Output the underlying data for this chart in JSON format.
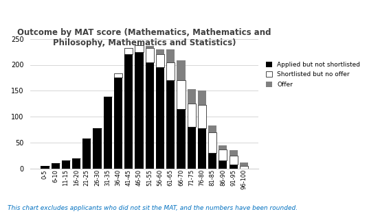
{
  "categories": [
    "0-5",
    "6-10",
    "11-15",
    "16-20",
    "21-25",
    "26-30",
    "31-35",
    "36-40",
    "41-45",
    "46-50",
    "51-55",
    "56-60",
    "61-65",
    "66-70",
    "71-75",
    "76-80",
    "81-85",
    "86-90",
    "91-95",
    "96-100"
  ],
  "applied_not_shortlisted": [
    5,
    10,
    15,
    20,
    58,
    78,
    138,
    175,
    220,
    225,
    205,
    195,
    170,
    115,
    80,
    78,
    30,
    15,
    8,
    0
  ],
  "shortlisted_no_offer": [
    0,
    0,
    0,
    0,
    0,
    0,
    0,
    8,
    13,
    13,
    27,
    25,
    35,
    55,
    45,
    45,
    40,
    22,
    17,
    5
  ],
  "offer": [
    0,
    0,
    0,
    0,
    0,
    0,
    0,
    0,
    0,
    0,
    5,
    10,
    25,
    38,
    28,
    28,
    13,
    8,
    10,
    7
  ],
  "colors": {
    "applied_not_shortlisted": "#000000",
    "shortlisted_no_offer": "#ffffff",
    "offer": "#808080"
  },
  "title": "Outcome by MAT score (Mathematics, Mathematics and\nPhilosophy, Mathematics and Statistics)",
  "ylim": [
    0,
    250
  ],
  "yticks": [
    0,
    50,
    100,
    150,
    200,
    250
  ],
  "footnote": "This chart excludes applicants who did not sit the MAT, and the numbers have been rounded.",
  "legend_labels": [
    "Applied but not shortlisted",
    "Shortlisted but no offer",
    "Offer"
  ],
  "background_color": "#ffffff",
  "title_color": "#404040",
  "footnote_color": "#0070c0"
}
